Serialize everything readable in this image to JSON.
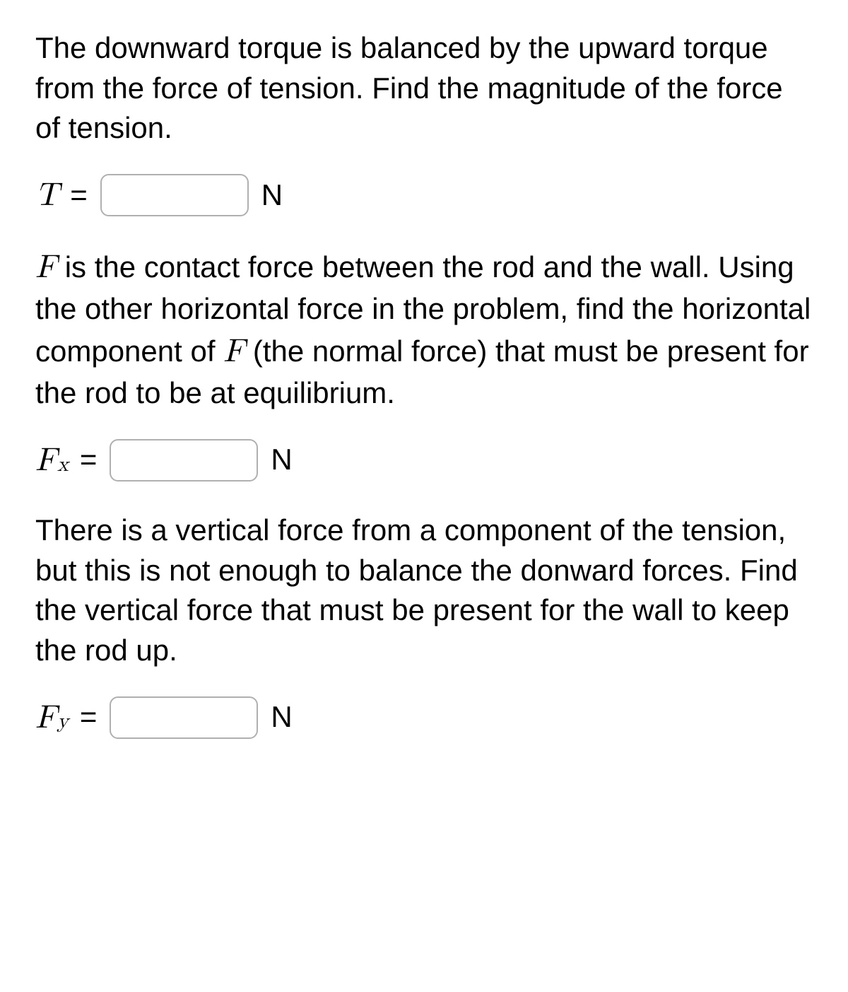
{
  "paragraphs": {
    "p1": "The downward torque is balanced by the upward torque from the force of tension. Find the magnitude of the force of tension.",
    "p2_pre": " is the contact force between the rod and the wall. Using the other horizontal force in the problem, find the horizontal component of ",
    "p2_post": " (the normal force) that must be present for the rod to be at equilibrium.",
    "p3": "There is a vertical force from a component of the tension, but this is not enough to balance the donward forces. Find the vertical force that must be present for the wall to keep the rod up."
  },
  "equations": {
    "eq1": {
      "var": "T",
      "sub": "",
      "equals": "=",
      "unit": "N",
      "value": ""
    },
    "eq2": {
      "var": "F",
      "sub": "x",
      "equals": "=",
      "unit": "N",
      "value": ""
    },
    "eq3": {
      "var": "F",
      "sub": "y",
      "equals": "=",
      "unit": "N",
      "value": ""
    }
  },
  "inline_vars": {
    "F1": "F",
    "F2": "F"
  },
  "styling": {
    "background_color": "#ffffff",
    "text_color": "#000000",
    "input_border_color": "#b0b0b0",
    "input_border_radius": 12,
    "body_font_size": 42,
    "math_font_size": 46,
    "sub_font_size": 30,
    "input_width": 210,
    "input_height": 60
  }
}
